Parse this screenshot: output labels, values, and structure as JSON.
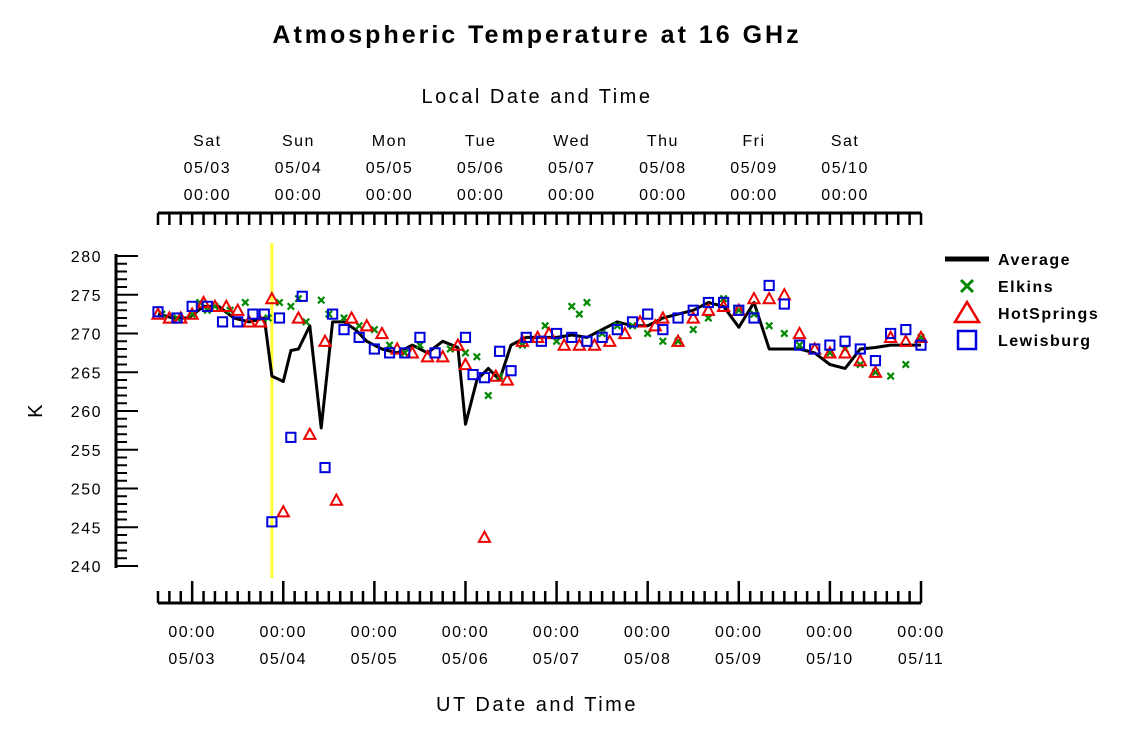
{
  "chart_data": {
    "type": "scatter",
    "title": "Atmospheric Temperature at 16 GHz",
    "xlabel_top": "Local Date and Time",
    "xlabel": "UT Date and Time",
    "ylabel": "K",
    "ylim": [
      240,
      280
    ],
    "yticks": [
      "240",
      "245",
      "250",
      "255",
      "260",
      "265",
      "270",
      "275",
      "280"
    ],
    "xlim": [
      "05/02 15:00",
      "05/11 00:00"
    ],
    "top_ticks": [
      {
        "day": "Sat",
        "date": "05/03",
        "time": "00:00"
      },
      {
        "day": "Sun",
        "date": "05/04",
        "time": "00:00"
      },
      {
        "day": "Mon",
        "date": "05/05",
        "time": "00:00"
      },
      {
        "day": "Tue",
        "date": "05/06",
        "time": "00:00"
      },
      {
        "day": "Wed",
        "date": "05/07",
        "time": "00:00"
      },
      {
        "day": "Thu",
        "date": "05/08",
        "time": "00:00"
      },
      {
        "day": "Fri",
        "date": "05/09",
        "time": "00:00"
      },
      {
        "day": "Sat",
        "date": "05/10",
        "time": "00:00"
      }
    ],
    "bottom_ticks": [
      {
        "time": "00:00",
        "date": "05/03"
      },
      {
        "time": "00:00",
        "date": "05/04"
      },
      {
        "time": "00:00",
        "date": "05/05"
      },
      {
        "time": "00:00",
        "date": "05/06"
      },
      {
        "time": "00:00",
        "date": "05/07"
      },
      {
        "time": "00:00",
        "date": "05/08"
      },
      {
        "time": "00:00",
        "date": "05/09"
      },
      {
        "time": "00:00",
        "date": "05/10"
      },
      {
        "time": "00:00",
        "date": "05/11"
      }
    ],
    "marker_line": {
      "x": "05/03 21:00",
      "color": "#ffff33"
    },
    "legend_position": "top-right",
    "series": [
      {
        "name": "Average",
        "kind": "line",
        "color": "#000000",
        "x": [
          "05/02 15:00",
          "05/02 19:00",
          "05/02 23:00",
          "05/03 03:00",
          "05/03 07:00",
          "05/03 11:00",
          "05/03 15:00",
          "05/03 19:00",
          "05/03 21:00",
          "05/04 00:00",
          "05/04 02:00",
          "05/04 04:00",
          "05/04 07:00",
          "05/04 10:00",
          "05/04 13:00",
          "05/04 16:00",
          "05/04 19:00",
          "05/04 22:00",
          "05/05 02:00",
          "05/05 06:00",
          "05/05 10:00",
          "05/05 14:00",
          "05/05 18:00",
          "05/05 22:00",
          "05/06 00:00",
          "05/06 03:00",
          "05/06 06:00",
          "05/06 09:00",
          "05/06 12:00",
          "05/06 16:00",
          "05/06 20:00",
          "05/07 00:00",
          "05/07 04:00",
          "05/07 08:00",
          "05/07 12:00",
          "05/07 16:00",
          "05/07 20:00",
          "05/08 00:00",
          "05/08 04:00",
          "05/08 08:00",
          "05/08 12:00",
          "05/08 16:00",
          "05/08 20:00",
          "05/09 00:00",
          "05/09 04:00",
          "05/09 08:00",
          "05/09 12:00",
          "05/09 16:00",
          "05/09 20:00",
          "05/10 00:00",
          "05/10 04:00",
          "05/10 08:00",
          "05/10 12:00",
          "05/10 16:00",
          "05/10 20:00",
          "05/11 00:00"
        ],
        "y": [
          272.5,
          272,
          272,
          273.5,
          273.5,
          272,
          271.5,
          272,
          264.5,
          263.8,
          267.8,
          268,
          271,
          257.8,
          271.5,
          271.5,
          270.5,
          269,
          268,
          267.5,
          268.5,
          267.5,
          269,
          268.2,
          258.3,
          264,
          265.5,
          264,
          268.5,
          269.5,
          269.5,
          269.5,
          269.8,
          269.5,
          270.5,
          271.5,
          271,
          271,
          272,
          272.5,
          273,
          274,
          273.5,
          270.8,
          274,
          268,
          268,
          268,
          267.5,
          266,
          265.5,
          268,
          268.2,
          268.5,
          268.5,
          268.5
        ]
      },
      {
        "name": "Elkins",
        "kind": "x",
        "color": "#008800",
        "x": [
          "05/02 16:00",
          "05/02 20:00",
          "05/03 00:00",
          "05/03 02:00",
          "05/03 04:00",
          "05/03 06:00",
          "05/03 10:00",
          "05/03 14:00",
          "05/03 20:00",
          "05/03 23:00",
          "05/04 02:00",
          "05/04 04:00",
          "05/04 06:00",
          "05/04 10:00",
          "05/04 12:00",
          "05/04 16:00",
          "05/04 20:00",
          "05/05 00:00",
          "05/05 04:00",
          "05/05 08:00",
          "05/05 12:00",
          "05/05 20:00",
          "05/06 00:00",
          "05/06 03:00",
          "05/06 06:00",
          "05/06 09:00",
          "05/06 15:00",
          "05/06 21:00",
          "05/07 00:00",
          "05/07 04:00",
          "05/07 06:00",
          "05/07 08:00",
          "05/07 12:00",
          "05/07 16:00",
          "05/07 20:00",
          "05/08 00:00",
          "05/08 04:00",
          "05/08 08:00",
          "05/08 12:00",
          "05/08 16:00",
          "05/08 20:00",
          "05/09 00:00",
          "05/09 04:00",
          "05/09 08:00",
          "05/09 12:00",
          "05/09 16:00",
          "05/10 00:00",
          "05/10 04:00",
          "05/10 08:00",
          "05/10 12:00",
          "05/10 16:00",
          "05/10 20:00",
          "05/11 00:00"
        ],
        "y": [
          272.5,
          272,
          272.5,
          274,
          273,
          273.5,
          273,
          274,
          272,
          274,
          273.5,
          274.5,
          271.5,
          274.3,
          272.5,
          272,
          271,
          270.5,
          268.5,
          267.5,
          268.5,
          268,
          267.5,
          267,
          262,
          264.5,
          268.5,
          271,
          269,
          273.5,
          272.5,
          274,
          270,
          271,
          271,
          270,
          269,
          269,
          270.5,
          272,
          274.5,
          273,
          272.5,
          271,
          270,
          268.5,
          267.5,
          268,
          266,
          265,
          264.5,
          266,
          269.5
        ]
      },
      {
        "name": "HotSprings",
        "kind": "triangle",
        "color": "#ee0000",
        "x": [
          "05/02 15:00",
          "05/02 18:00",
          "05/02 21:00",
          "05/03 00:00",
          "05/03 03:00",
          "05/03 06:00",
          "05/03 09:00",
          "05/03 12:00",
          "05/03 15:00",
          "05/03 18:00",
          "05/03 21:00",
          "05/04 00:00",
          "05/04 04:00",
          "05/04 07:00",
          "05/04 11:00",
          "05/04 14:00",
          "05/04 18:00",
          "05/04 22:00",
          "05/05 02:00",
          "05/05 06:00",
          "05/05 10:00",
          "05/05 14:00",
          "05/05 18:00",
          "05/05 22:00",
          "05/06 00:00",
          "05/06 05:00",
          "05/06 08:00",
          "05/06 11:00",
          "05/06 15:00",
          "05/06 19:00",
          "05/06 22:00",
          "05/07 02:00",
          "05/07 06:00",
          "05/07 10:00",
          "05/07 14:00",
          "05/07 18:00",
          "05/07 22:00",
          "05/08 02:00",
          "05/08 04:00",
          "05/08 08:00",
          "05/08 12:00",
          "05/08 16:00",
          "05/08 20:00",
          "05/09 00:00",
          "05/09 04:00",
          "05/09 08:00",
          "05/09 12:00",
          "05/09 16:00",
          "05/09 20:00",
          "05/10 00:00",
          "05/10 04:00",
          "05/10 08:00",
          "05/10 12:00",
          "05/10 16:00",
          "05/10 20:00",
          "05/11 00:00"
        ],
        "y": [
          272.5,
          272,
          272,
          272.5,
          274,
          273.5,
          273.5,
          273,
          271.5,
          271.5,
          274.5,
          247,
          272,
          257,
          269,
          248.5,
          272,
          271,
          270,
          268,
          267.5,
          267,
          267,
          268.5,
          266,
          243.7,
          264.5,
          264,
          269,
          269.5,
          270,
          268.5,
          268.5,
          268.5,
          269,
          270,
          271.5,
          271,
          272,
          269,
          272,
          273,
          273.5,
          273,
          274.5,
          274.5,
          275,
          270,
          268,
          267.5,
          267.5,
          266.5,
          265,
          269.5,
          269,
          269.5
        ]
      },
      {
        "name": "Lewisburg",
        "kind": "square",
        "color": "#0000dd",
        "x": [
          "05/02 15:00",
          "05/02 20:00",
          "05/03 00:00",
          "05/03 04:00",
          "05/03 08:00",
          "05/03 12:00",
          "05/03 16:00",
          "05/03 19:00",
          "05/03 21:00",
          "05/03 23:00",
          "05/04 02:00",
          "05/04 05:00",
          "05/04 11:00",
          "05/04 13:00",
          "05/04 16:00",
          "05/04 20:00",
          "05/05 00:00",
          "05/05 04:00",
          "05/05 08:00",
          "05/05 12:00",
          "05/05 16:00",
          "05/06 00:00",
          "05/06 02:00",
          "05/06 05:00",
          "05/06 09:00",
          "05/06 12:00",
          "05/06 16:00",
          "05/06 20:00",
          "05/07 00:00",
          "05/07 04:00",
          "05/07 08:00",
          "05/07 12:00",
          "05/07 16:00",
          "05/07 20:00",
          "05/08 00:00",
          "05/08 04:00",
          "05/08 08:00",
          "05/08 12:00",
          "05/08 16:00",
          "05/08 20:00",
          "05/09 00:00",
          "05/09 04:00",
          "05/09 08:00",
          "05/09 12:00",
          "05/09 16:00",
          "05/09 20:00",
          "05/10 00:00",
          "05/10 04:00",
          "05/10 08:00",
          "05/10 12:00",
          "05/10 16:00",
          "05/10 20:00",
          "05/11 00:00"
        ],
        "y": [
          272.8,
          272,
          273.5,
          273.5,
          271.5,
          271.5,
          272.5,
          272.5,
          245.7,
          272,
          256.6,
          274.8,
          252.7,
          272.5,
          270.5,
          269.5,
          268,
          267.5,
          267.5,
          269.5,
          267.5,
          269.5,
          264.7,
          264.3,
          267.7,
          265.2,
          269.5,
          269,
          270,
          269.5,
          269,
          269.5,
          270.5,
          271.5,
          272.5,
          270.5,
          272,
          273,
          274,
          274,
          273,
          272,
          276.2,
          273.8,
          268.5,
          268,
          268.5,
          269,
          268,
          266.5,
          270,
          270.5,
          268.5
        ]
      }
    ]
  }
}
